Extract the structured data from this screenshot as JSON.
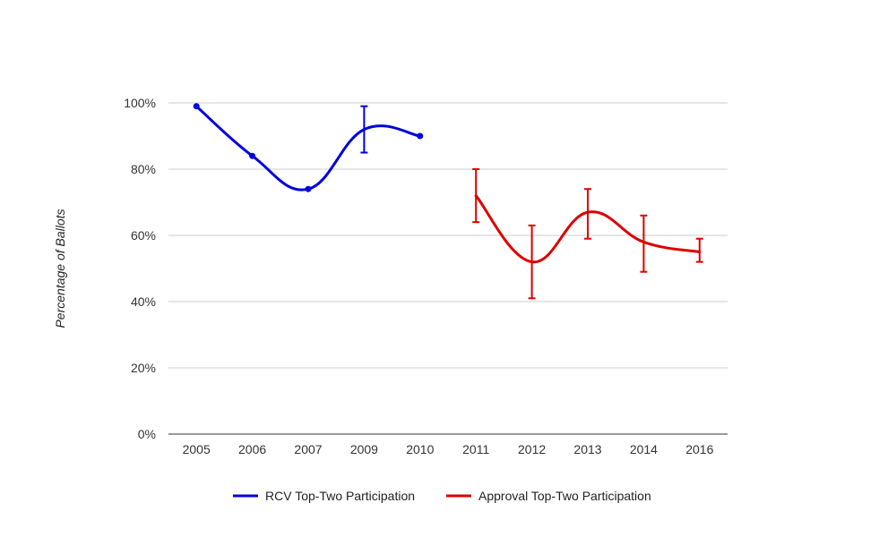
{
  "chart_data": {
    "type": "line",
    "title": "",
    "xlabel": "",
    "ylabel": "Percentage of Ballots",
    "categories": [
      "2005",
      "2006",
      "2007",
      "2009",
      "2010",
      "2011",
      "2012",
      "2013",
      "2014",
      "2016"
    ],
    "ylim": [
      0,
      100
    ],
    "y_ticks": [
      "0%",
      "20%",
      "40%",
      "60%",
      "80%",
      "100%"
    ],
    "y_tick_values": [
      0,
      20,
      40,
      60,
      80,
      100
    ],
    "grid": true,
    "legend_position": "bottom",
    "series": [
      {
        "name": "RCV Top-Two Participation",
        "color": "#0000dd",
        "values": [
          99,
          84,
          74,
          92,
          90,
          null,
          null,
          null,
          null,
          null
        ],
        "error_low": [
          99,
          84,
          74,
          85,
          90,
          null,
          null,
          null,
          null,
          null
        ],
        "error_high": [
          99,
          84,
          74,
          99,
          90,
          null,
          null,
          null,
          null,
          null
        ]
      },
      {
        "name": "Approval Top-Two Participation",
        "color": "#dd0000",
        "values": [
          null,
          null,
          null,
          null,
          null,
          72,
          52,
          67,
          58,
          55
        ],
        "error_low": [
          null,
          null,
          null,
          null,
          null,
          64,
          41,
          59,
          49,
          52
        ],
        "error_high": [
          null,
          null,
          null,
          null,
          null,
          80,
          63,
          74,
          66,
          59
        ]
      }
    ]
  }
}
